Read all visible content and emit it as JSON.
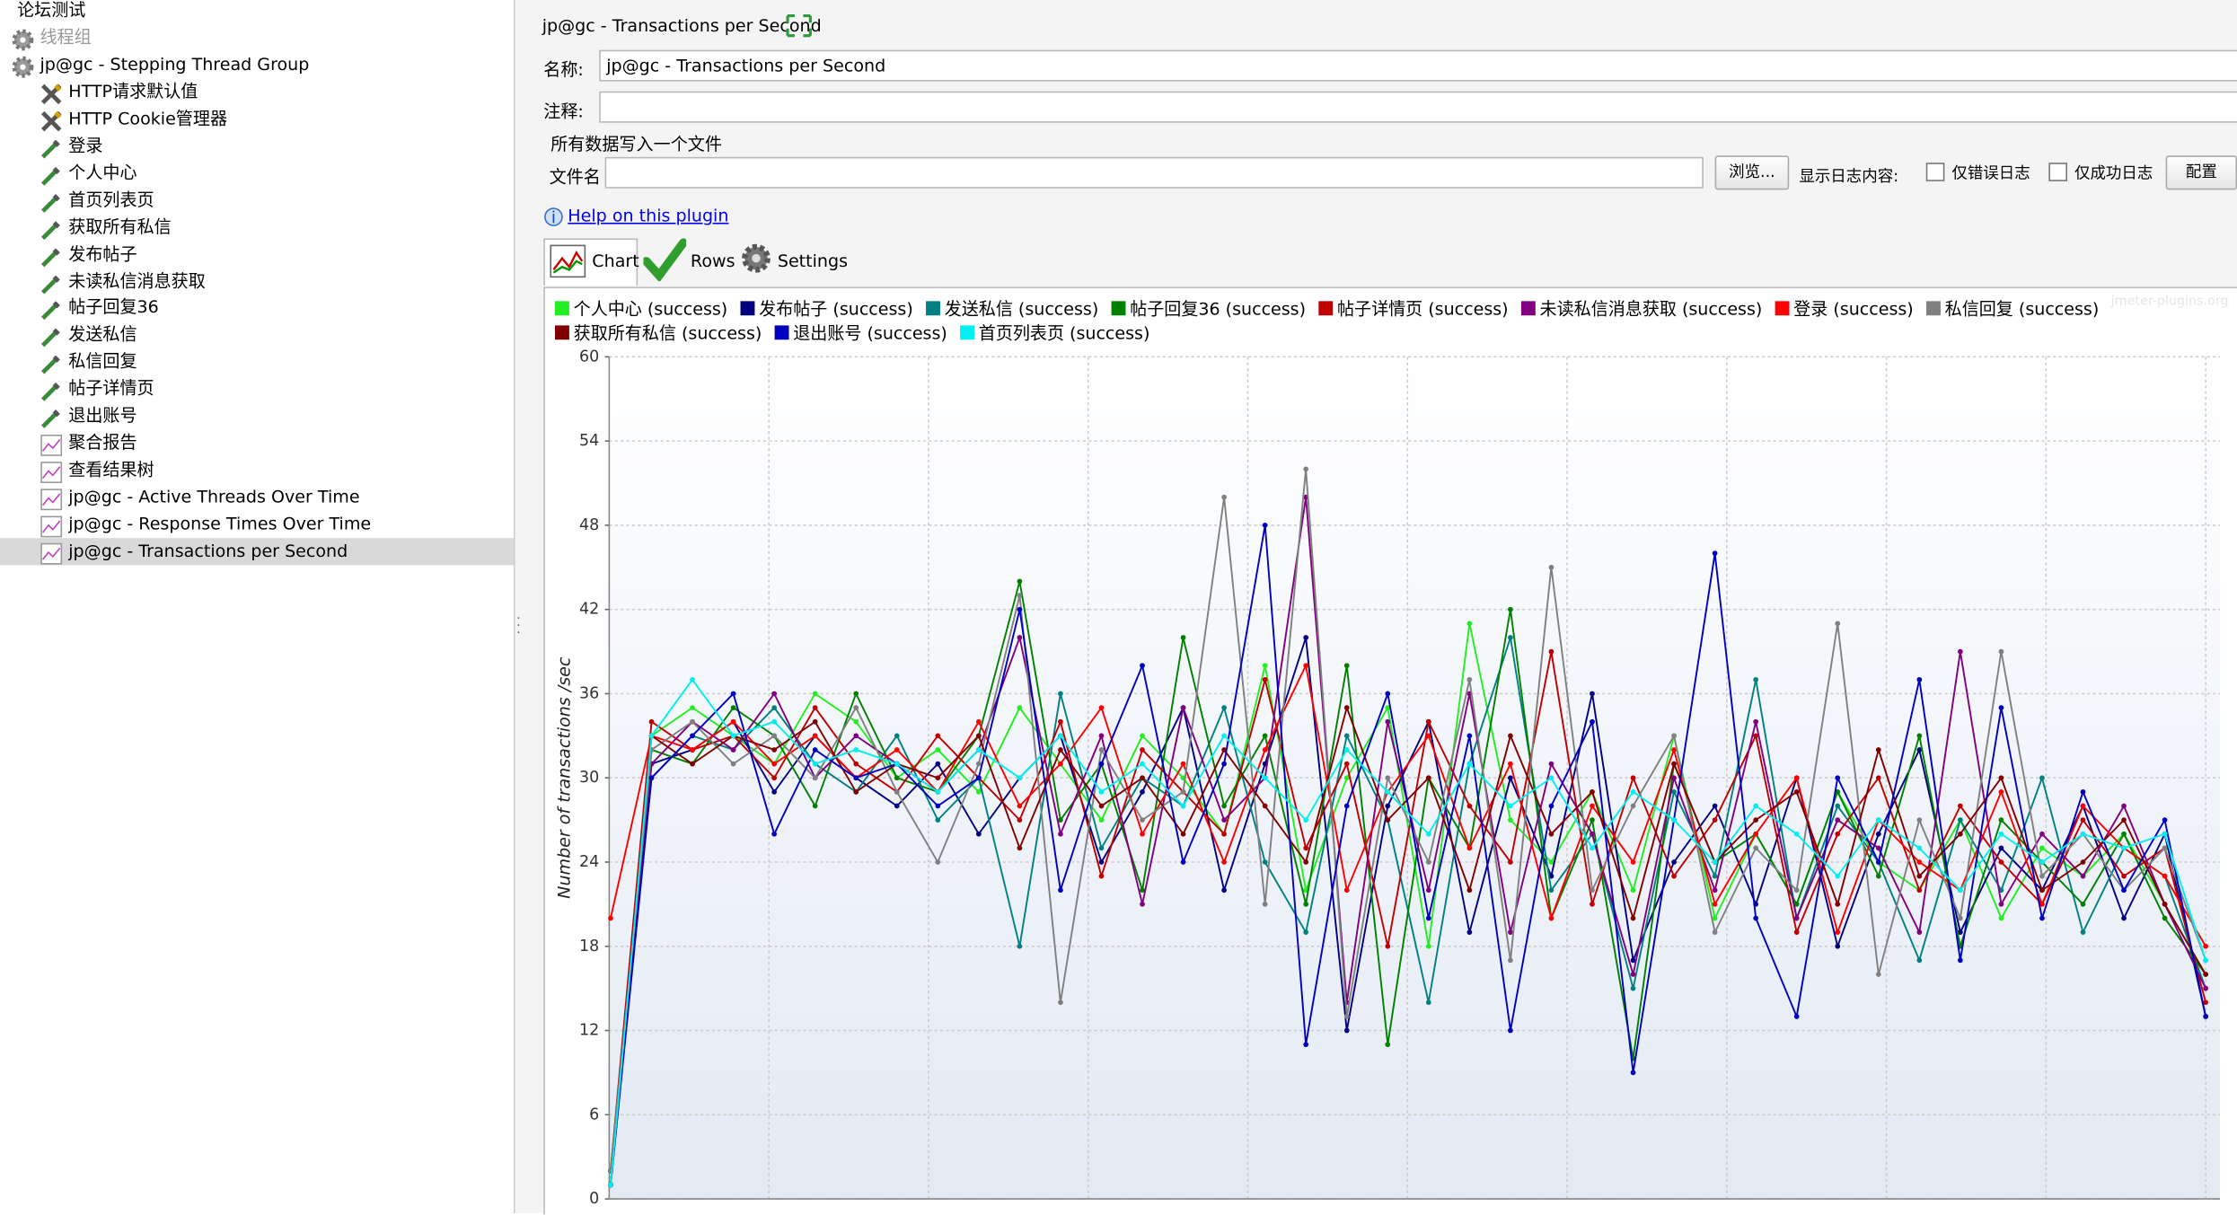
{
  "tree": {
    "items": [
      "论坛测试",
      "线程组",
      "jp@gc - Stepping Thread Group",
      "HTTP请求默认值",
      "HTTP Cookie管理器",
      "登录",
      "个人中心",
      "首页列表页",
      "获取所有私信",
      "发布帖子",
      "未读私信消息获取",
      "帖子回复36",
      "发送私信",
      "私信回复",
      "帖子详情页",
      "退出账号",
      "聚合报告",
      "查看结果树",
      "jp@gc - Active Threads Over Time",
      "jp@gc - Response Times Over Time",
      "jp@gc - Transactions per Second"
    ]
  },
  "panel": {
    "heading": "jp@gc - Transactions per Second",
    "name_label": "名称:",
    "name_value": "jp@gc - Transactions per Second",
    "comment_label": "注释:",
    "section": "所有数据写入一个文件",
    "file_label": "文件名",
    "browse": "浏览...",
    "log_label": "显示日志内容:",
    "errors_only": "仅错误日志",
    "success_only": "仅成功日志",
    "configure": "配置",
    "help": "Help on this plugin",
    "tabs": [
      "Chart",
      "Rows",
      "Settings"
    ],
    "watermark": "jmeter-plugins.org"
  },
  "chart_data": {
    "type": "line",
    "y_label": "Number of transactions /sec",
    "ylim": [
      0,
      60
    ],
    "yticks": [
      0,
      6,
      12,
      18,
      24,
      30,
      36,
      42,
      48,
      54,
      60
    ],
    "grid": true,
    "series": [
      {
        "name": "个人中心 (success)",
        "color": "#22ee22",
        "values": [
          2,
          33,
          35,
          33,
          31,
          36,
          34,
          30,
          32,
          29,
          35,
          31,
          27,
          33,
          30,
          26,
          38,
          22,
          30,
          35,
          18,
          41,
          27,
          24,
          29,
          22,
          33,
          20,
          26,
          21,
          29,
          24,
          22,
          27,
          20,
          25,
          23,
          26,
          21,
          16
        ]
      },
      {
        "name": "发布帖子 (success)",
        "color": "#000080",
        "values": [
          1,
          31,
          32,
          34,
          29,
          33,
          30,
          28,
          31,
          26,
          30,
          33,
          24,
          29,
          35,
          22,
          31,
          40,
          12,
          28,
          34,
          19,
          30,
          23,
          36,
          17,
          24,
          28,
          21,
          30,
          18,
          26,
          32,
          19,
          25,
          22,
          28,
          20,
          26,
          13
        ]
      },
      {
        "name": "发送私信 (success)",
        "color": "#008080",
        "values": [
          2,
          30,
          33,
          32,
          35,
          31,
          29,
          33,
          27,
          30,
          18,
          36,
          25,
          30,
          28,
          35,
          24,
          19,
          33,
          27,
          14,
          31,
          40,
          22,
          26,
          15,
          29,
          23,
          37,
          20,
          28,
          24,
          17,
          27,
          22,
          30,
          19,
          25,
          23,
          15
        ]
      },
      {
        "name": "帖子回复36 (success)",
        "color": "#008000",
        "values": [
          1,
          32,
          31,
          35,
          33,
          28,
          36,
          30,
          29,
          33,
          44,
          27,
          31,
          22,
          40,
          28,
          33,
          21,
          38,
          11,
          30,
          25,
          42,
          20,
          27,
          10,
          31,
          24,
          26,
          21,
          29,
          23,
          33,
          18,
          27,
          24,
          21,
          26,
          20,
          16
        ]
      },
      {
        "name": "帖子详情页 (success)",
        "color": "#c00000",
        "values": [
          2,
          34,
          32,
          33,
          30,
          35,
          31,
          29,
          33,
          30,
          27,
          34,
          23,
          32,
          29,
          26,
          37,
          25,
          31,
          18,
          34,
          28,
          24,
          39,
          21,
          30,
          23,
          27,
          33,
          19,
          26,
          30,
          22,
          28,
          24,
          21,
          27,
          23,
          25,
          14
        ]
      },
      {
        "name": "未读私信消息获取 (success)",
        "color": "#800080",
        "values": [
          1,
          31,
          34,
          32,
          36,
          30,
          33,
          31,
          29,
          32,
          40,
          26,
          33,
          21,
          35,
          27,
          30,
          50,
          14,
          34,
          22,
          36,
          19,
          31,
          26,
          16,
          30,
          22,
          34,
          20,
          27,
          25,
          19,
          39,
          21,
          26,
          23,
          28,
          21,
          15
        ]
      },
      {
        "name": "登录 (success)",
        "color": "#ff0000",
        "values": [
          20,
          33,
          32,
          34,
          31,
          33,
          30,
          32,
          29,
          34,
          28,
          31,
          35,
          26,
          31,
          24,
          32,
          38,
          22,
          29,
          33,
          25,
          31,
          20,
          28,
          24,
          32,
          21,
          26,
          30,
          19,
          27,
          24,
          22,
          29,
          21,
          28,
          25,
          23,
          18
        ]
      },
      {
        "name": "私信回复 (success)",
        "color": "#808080",
        "values": [
          2,
          32,
          34,
          31,
          33,
          30,
          35,
          29,
          24,
          31,
          43,
          14,
          32,
          27,
          29,
          50,
          21,
          52,
          13,
          30,
          24,
          37,
          17,
          45,
          22,
          28,
          33,
          19,
          25,
          22,
          41,
          16,
          27,
          20,
          39,
          23,
          26,
          22,
          25,
          17
        ]
      },
      {
        "name": "获取所有私信 (success)",
        "color": "#800000",
        "values": [
          1,
          33,
          31,
          33,
          32,
          34,
          29,
          31,
          30,
          33,
          25,
          32,
          28,
          30,
          26,
          32,
          28,
          24,
          35,
          27,
          30,
          22,
          33,
          26,
          29,
          20,
          31,
          24,
          27,
          29,
          21,
          32,
          23,
          26,
          30,
          22,
          24,
          27,
          21,
          16
        ]
      },
      {
        "name": "退出账号 (success)",
        "color": "#0000c0",
        "values": [
          1,
          30,
          33,
          36,
          26,
          32,
          30,
          31,
          28,
          30,
          42,
          22,
          31,
          38,
          24,
          31,
          48,
          11,
          28,
          36,
          20,
          33,
          12,
          28,
          34,
          9,
          27,
          46,
          20,
          13,
          30,
          24,
          37,
          17,
          35,
          20,
          29,
          22,
          27,
          13
        ]
      },
      {
        "name": "首页列表页 (success)",
        "color": "#00f0f0",
        "values": [
          1,
          33,
          37,
          33,
          34,
          31,
          32,
          31,
          29,
          32,
          30,
          33,
          29,
          31,
          28,
          33,
          30,
          27,
          32,
          29,
          26,
          31,
          28,
          30,
          25,
          29,
          27,
          24,
          28,
          26,
          23,
          27,
          25,
          22,
          26,
          24,
          26,
          25,
          26,
          17
        ]
      }
    ]
  }
}
